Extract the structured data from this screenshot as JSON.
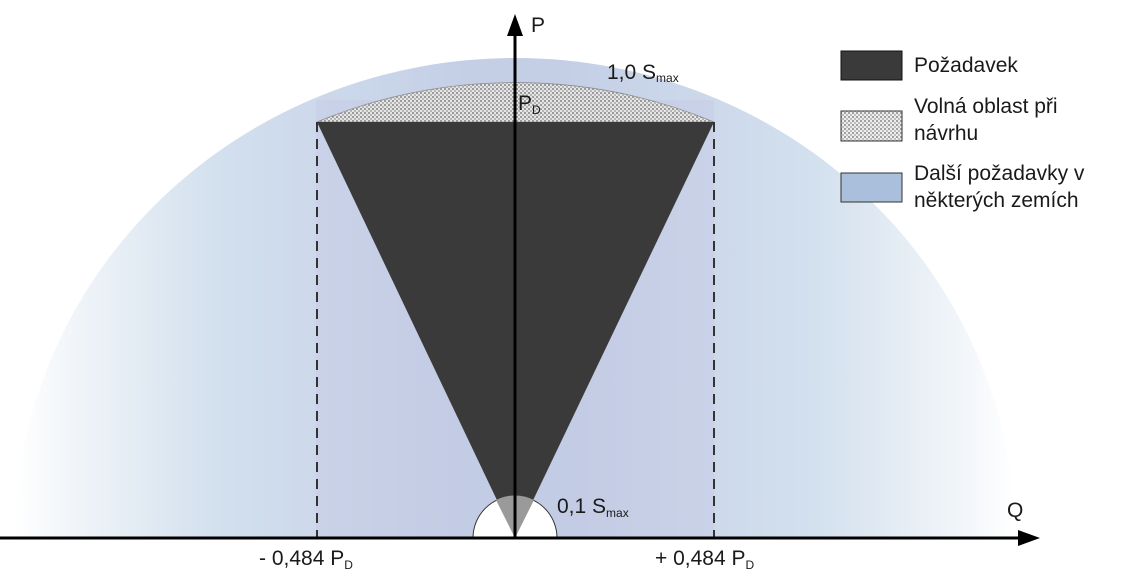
{
  "diagram": {
    "axes": {
      "p_label": "P",
      "q_label": "Q"
    },
    "labels": {
      "top_arc": {
        "main": "1,0 S",
        "sub": "max"
      },
      "pd": {
        "main": "P",
        "sub": "D"
      },
      "small_arc": {
        "main": "0,1 S",
        "sub": "max"
      },
      "left_limit": {
        "main": "- 0,484 P",
        "sub": "D"
      },
      "right_limit": {
        "main": "+ 0,484 P",
        "sub": "D"
      }
    },
    "legend": [
      {
        "key": "requirement",
        "lines": [
          "Požadavek"
        ]
      },
      {
        "key": "free-design-area",
        "lines": [
          "Volná oblast při",
          "návrhu"
        ]
      },
      {
        "key": "other-requirements",
        "lines": [
          "Další požadavky v",
          "některých zemích"
        ]
      }
    ],
    "colors": {
      "requirement": "#3a3a3a",
      "free_area": "#d9d9d9",
      "other_requirements": "#a9bfdc",
      "axis": "#000000"
    }
  }
}
